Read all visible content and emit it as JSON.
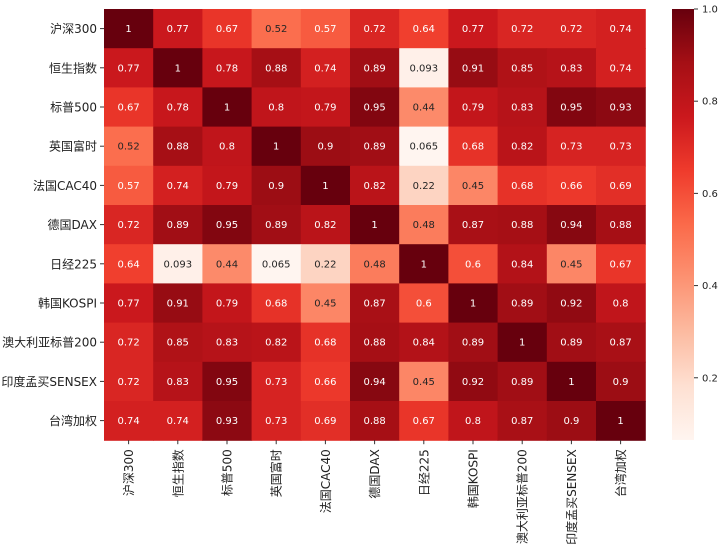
{
  "chart_data": {
    "type": "heatmap",
    "title": "",
    "xlabel": "",
    "ylabel": "",
    "labels": [
      "沪深300",
      "恒生指数",
      "标普500",
      "英国富时",
      "法国CAC40",
      "德国DAX",
      "日经225",
      "韩国KOSPI",
      "澳大利亚标普200",
      "印度孟买SENSEX",
      "台湾加权"
    ],
    "matrix": [
      [
        1,
        0.77,
        0.67,
        0.52,
        0.57,
        0.72,
        0.64,
        0.77,
        0.72,
        0.72,
        0.74
      ],
      [
        0.77,
        1,
        0.78,
        0.88,
        0.74,
        0.89,
        0.093,
        0.91,
        0.85,
        0.83,
        0.74
      ],
      [
        0.67,
        0.78,
        1,
        0.8,
        0.79,
        0.95,
        0.44,
        0.79,
        0.83,
        0.95,
        0.93
      ],
      [
        0.52,
        0.88,
        0.8,
        1,
        0.9,
        0.89,
        0.065,
        0.68,
        0.82,
        0.73,
        0.73
      ],
      [
        0.57,
        0.74,
        0.79,
        0.9,
        1,
        0.82,
        0.22,
        0.45,
        0.68,
        0.66,
        0.69
      ],
      [
        0.72,
        0.89,
        0.95,
        0.89,
        0.82,
        1,
        0.48,
        0.87,
        0.88,
        0.94,
        0.88
      ],
      [
        0.64,
        0.093,
        0.44,
        0.065,
        0.22,
        0.48,
        1,
        0.6,
        0.84,
        0.45,
        0.67
      ],
      [
        0.77,
        0.91,
        0.79,
        0.68,
        0.45,
        0.87,
        0.6,
        1,
        0.89,
        0.92,
        0.8
      ],
      [
        0.72,
        0.85,
        0.83,
        0.82,
        0.68,
        0.88,
        0.84,
        0.89,
        1,
        0.89,
        0.87
      ],
      [
        0.72,
        0.83,
        0.95,
        0.73,
        0.66,
        0.94,
        0.45,
        0.92,
        0.89,
        1,
        0.9
      ],
      [
        0.74,
        0.74,
        0.93,
        0.73,
        0.69,
        0.88,
        0.67,
        0.8,
        0.87,
        0.9,
        1
      ]
    ],
    "value_labels": [
      [
        "1",
        "0.77",
        "0.67",
        "0.52",
        "0.57",
        "0.72",
        "0.64",
        "0.77",
        "0.72",
        "0.72",
        "0.74"
      ],
      [
        "0.77",
        "1",
        "0.78",
        "0.88",
        "0.74",
        "0.89",
        "0.093",
        "0.91",
        "0.85",
        "0.83",
        "0.74"
      ],
      [
        "0.67",
        "0.78",
        "1",
        "0.8",
        "0.79",
        "0.95",
        "0.44",
        "0.79",
        "0.83",
        "0.95",
        "0.93"
      ],
      [
        "0.52",
        "0.88",
        "0.8",
        "1",
        "0.9",
        "0.89",
        "0.065",
        "0.68",
        "0.82",
        "0.73",
        "0.73"
      ],
      [
        "0.57",
        "0.74",
        "0.79",
        "0.9",
        "1",
        "0.82",
        "0.22",
        "0.45",
        "0.68",
        "0.66",
        "0.69"
      ],
      [
        "0.72",
        "0.89",
        "0.95",
        "0.89",
        "0.82",
        "1",
        "0.48",
        "0.87",
        "0.88",
        "0.94",
        "0.88"
      ],
      [
        "0.64",
        "0.093",
        "0.44",
        "0.065",
        "0.22",
        "0.48",
        "1",
        "0.6",
        "0.84",
        "0.45",
        "0.67"
      ],
      [
        "0.77",
        "0.91",
        "0.79",
        "0.68",
        "0.45",
        "0.87",
        "0.6",
        "1",
        "0.89",
        "0.92",
        "0.8"
      ],
      [
        "0.72",
        "0.85",
        "0.83",
        "0.82",
        "0.68",
        "0.88",
        "0.84",
        "0.89",
        "1",
        "0.89",
        "0.87"
      ],
      [
        "0.72",
        "0.83",
        "0.95",
        "0.73",
        "0.66",
        "0.94",
        "0.45",
        "0.92",
        "0.89",
        "1",
        "0.9"
      ],
      [
        "0.74",
        "0.74",
        "0.93",
        "0.73",
        "0.69",
        "0.88",
        "0.67",
        "0.8",
        "0.87",
        "0.9",
        "1"
      ]
    ],
    "vmin": 0.065,
    "vmax": 1.0,
    "colormap": "Reds",
    "colormap_stops": [
      "#fff5f0",
      "#fee0d2",
      "#fcbba1",
      "#fc9272",
      "#fb6a4a",
      "#ef3b2c",
      "#cb181d",
      "#a50f15",
      "#67000d"
    ],
    "colorbar": {
      "ticks": [
        0.2,
        0.4,
        0.6,
        0.8,
        1.0
      ],
      "tick_labels": [
        "0.2",
        "0.4",
        "0.6",
        "0.8",
        "1.0"
      ]
    },
    "grid": false,
    "legend": "colorbar-right"
  }
}
